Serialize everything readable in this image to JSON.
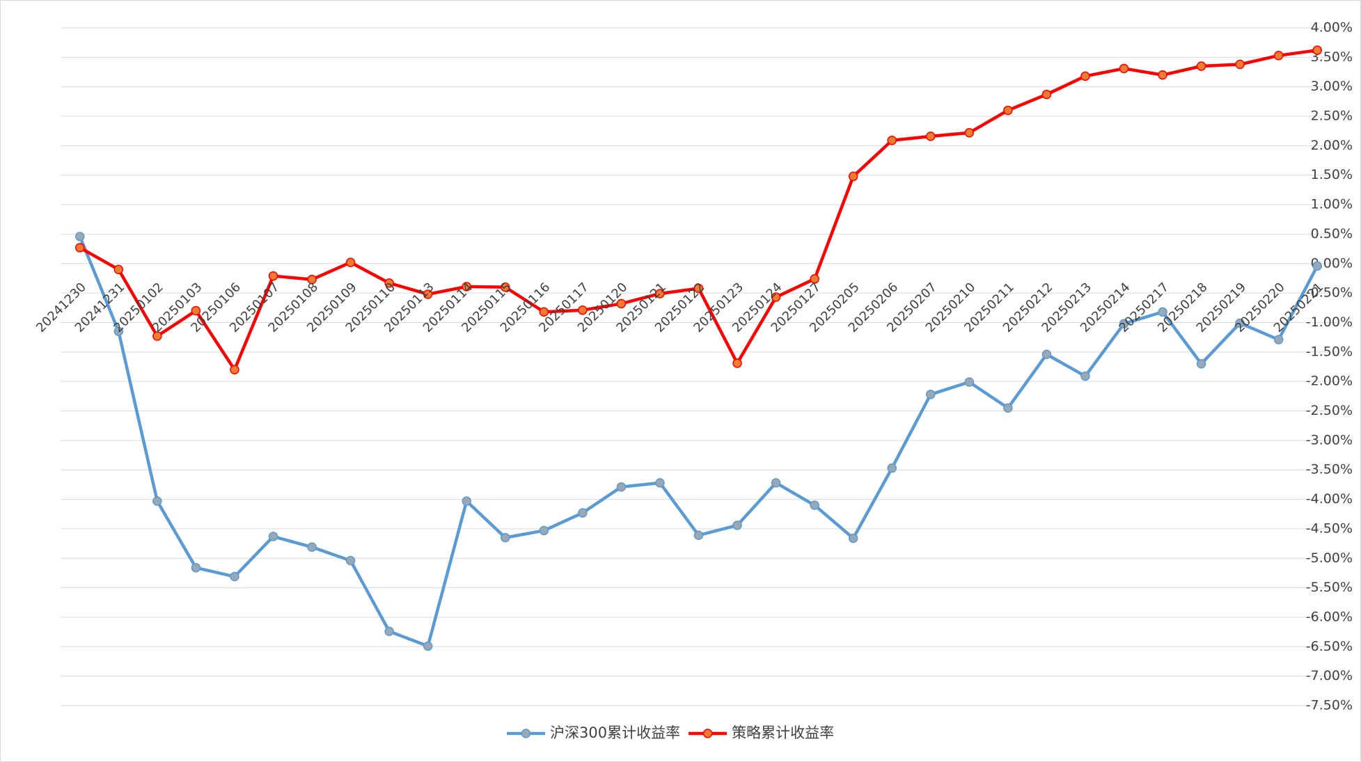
{
  "chart_data": {
    "type": "line",
    "categories": [
      "20241230",
      "20241231",
      "20250102",
      "20250103",
      "20250106",
      "20250107",
      "20250108",
      "20250109",
      "20250110",
      "20250113",
      "20250114",
      "20250115",
      "20250116",
      "20250117",
      "20250120",
      "20250121",
      "20250122",
      "20250123",
      "20250124",
      "20250127",
      "20250205",
      "20250206",
      "20250207",
      "20250210",
      "20250211",
      "20250212",
      "20250213",
      "20250214",
      "20250217",
      "20250218",
      "20250219",
      "20250220",
      "20250221"
    ],
    "series": [
      {
        "name": "沪深300累计收益率",
        "color": "#5b9bd5",
        "marker_color": "#9aa7b4",
        "values": [
          0.46,
          -1.15,
          -4.03,
          -5.16,
          -5.31,
          -4.63,
          -4.81,
          -5.04,
          -6.24,
          -6.49,
          -4.03,
          -4.65,
          -4.53,
          -4.23,
          -3.79,
          -3.72,
          -4.61,
          -4.44,
          -3.72,
          -4.1,
          -4.66,
          -3.47,
          -2.22,
          -2.01,
          -2.45,
          -1.54,
          -1.91,
          -1.02,
          -0.82,
          -1.7,
          -1.01,
          -1.29,
          -0.04
        ]
      },
      {
        "name": "策略累计收益率",
        "color": "#ff0000",
        "marker_color": "#ed7d31",
        "values": [
          0.27,
          -0.1,
          -1.23,
          -0.8,
          -1.8,
          -0.21,
          -0.27,
          0.02,
          -0.33,
          -0.52,
          -0.39,
          -0.4,
          -0.82,
          -0.79,
          -0.68,
          -0.51,
          -0.42,
          -1.69,
          -0.57,
          -0.26,
          1.48,
          2.09,
          2.16,
          2.22,
          2.6,
          2.87,
          3.18,
          3.31,
          3.2,
          3.35,
          3.38,
          3.53,
          3.62
        ]
      }
    ],
    "ylim": [
      -7.5,
      4
    ],
    "yticks": [
      {
        "value": 4,
        "label": "4.00%"
      },
      {
        "value": 3.5,
        "label": "3.50%"
      },
      {
        "value": 3,
        "label": "3.00%"
      },
      {
        "value": 2.5,
        "label": "2.50%"
      },
      {
        "value": 2,
        "label": "2.00%"
      },
      {
        "value": 1.5,
        "label": "1.50%"
      },
      {
        "value": 1,
        "label": "1.00%"
      },
      {
        "value": 0.5,
        "label": "0.50%"
      },
      {
        "value": 0,
        "label": "0.00%"
      },
      {
        "value": -0.5,
        "label": "-0.50%"
      },
      {
        "value": -1,
        "label": "-1.00%"
      },
      {
        "value": -1.5,
        "label": "-1.50%"
      },
      {
        "value": -2,
        "label": "-2.00%"
      },
      {
        "value": -2.5,
        "label": "-2.50%"
      },
      {
        "value": -3,
        "label": "-3.00%"
      },
      {
        "value": -3.5,
        "label": "-3.50%"
      },
      {
        "value": -4,
        "label": "-4.00%"
      },
      {
        "value": -4.5,
        "label": "-4.50%"
      },
      {
        "value": -5,
        "label": "-5.00%"
      },
      {
        "value": -5.5,
        "label": "-5.50%"
      },
      {
        "value": -6,
        "label": "-6.00%"
      },
      {
        "value": -6.5,
        "label": "-6.50%"
      },
      {
        "value": -7,
        "label": "-7.00%"
      },
      {
        "value": -7.5,
        "label": "-7.50%"
      }
    ],
    "grid": true,
    "legend": "bottom"
  }
}
